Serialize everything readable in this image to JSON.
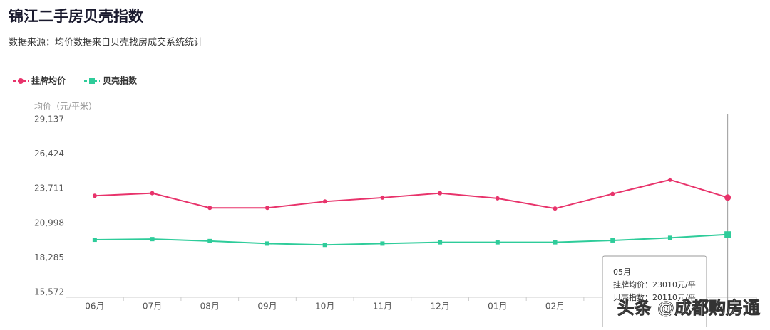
{
  "chart_data": {
    "type": "line",
    "title": "锦江二手房贝壳指数",
    "subtitle": "数据来源：均价数据来自贝壳找房成交系统统计",
    "y_label": "均价（元/平米）",
    "categories": [
      "06月",
      "07月",
      "08月",
      "09月",
      "10月",
      "11月",
      "12月",
      "01月",
      "02月",
      null,
      null,
      null
    ],
    "series": [
      {
        "name": "挂牌均价",
        "color": "#e8336b",
        "marker": "circle",
        "values": [
          23150,
          23350,
          22200,
          22200,
          22700,
          23000,
          23350,
          22950,
          22150,
          23300,
          24400,
          23010
        ]
      },
      {
        "name": "贝壳指数",
        "color": "#2ecc9a",
        "marker": "square",
        "values": [
          19700,
          19750,
          19600,
          19400,
          19300,
          19400,
          19500,
          19500,
          19500,
          19650,
          19850,
          20110
        ]
      }
    ],
    "ylim": [
      15572,
      29137
    ],
    "yticks": [
      {
        "value": 15572,
        "label": "15,572"
      },
      {
        "value": 18285,
        "label": "18,285"
      },
      {
        "value": 20998,
        "label": "20,998"
      },
      {
        "value": 23711,
        "label": "23,711"
      },
      {
        "value": 26424,
        "label": "26,424"
      },
      {
        "value": 29137,
        "label": "29,137"
      }
    ],
    "grid": false,
    "legend": "top-left",
    "tooltip": {
      "title": "05月",
      "lines": [
        "挂牌均价：23010元/平",
        "贝壳指数：20110元/平"
      ]
    }
  },
  "watermark": "头条 @成都购房通"
}
